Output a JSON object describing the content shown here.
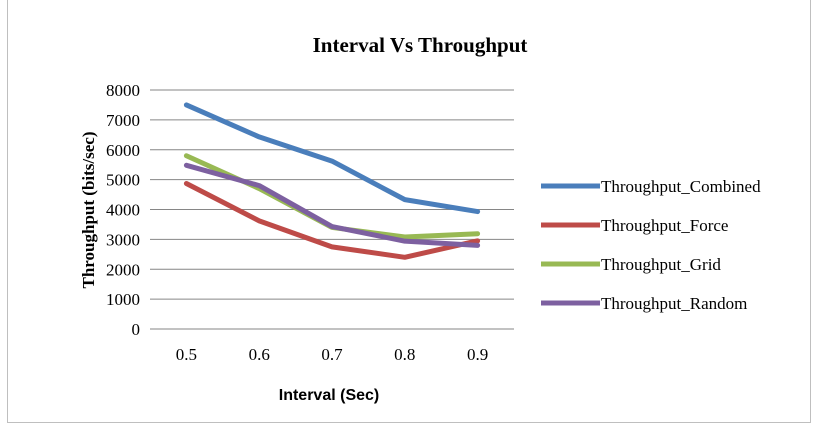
{
  "chart_data": {
    "type": "line",
    "title": "Interval Vs Throughput",
    "xlabel": "Interval (Sec)",
    "ylabel": "Throughput (bits/sec)",
    "categories": [
      "0.5",
      "0.6",
      "0.7",
      "0.8",
      "0.9"
    ],
    "ylim": [
      0,
      8000
    ],
    "yticks": [
      "0",
      "1000",
      "2000",
      "3000",
      "4000",
      "5000",
      "6000",
      "7000",
      "8000"
    ],
    "grid": true,
    "legend_position": "right",
    "series": [
      {
        "name": "Throughput_Combined",
        "color": "#4a7ebb",
        "values": [
          7500,
          6430,
          5620,
          4330,
          3930
        ]
      },
      {
        "name": "Throughput_Force",
        "color": "#be4b48",
        "values": [
          4870,
          3620,
          2750,
          2400,
          2950
        ]
      },
      {
        "name": "Throughput_Grid",
        "color": "#98b954",
        "values": [
          5800,
          4700,
          3400,
          3080,
          3190
        ]
      },
      {
        "name": "Throughput_Random",
        "color": "#7d60a0",
        "values": [
          5480,
          4800,
          3430,
          2940,
          2800
        ]
      }
    ]
  }
}
